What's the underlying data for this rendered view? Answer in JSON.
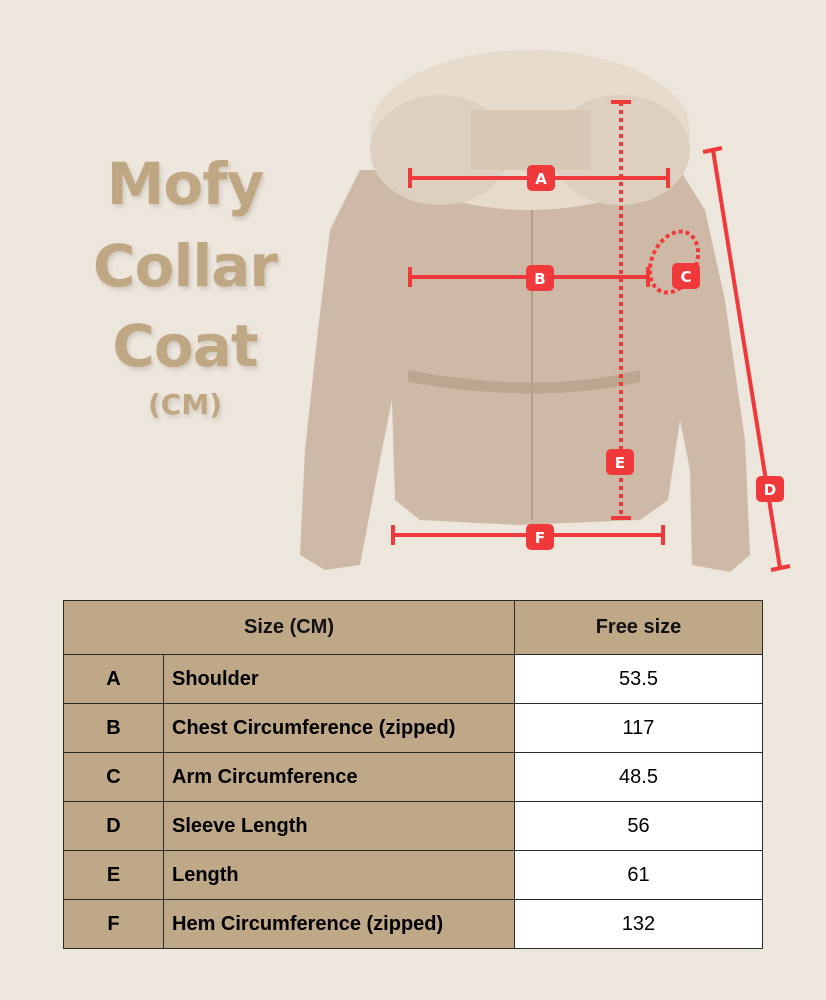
{
  "title": {
    "line1": "Mofy",
    "line2": "Collar",
    "line3": "Coat",
    "unit": "(CM)"
  },
  "colors": {
    "background": "#ede6dc",
    "accent": "#c0a784",
    "table_header": "#bfa888",
    "measure_red": "#f0393b"
  },
  "labels": [
    "A",
    "B",
    "C",
    "D",
    "E",
    "F"
  ],
  "table": {
    "header": {
      "size": "Size (CM)",
      "value": "Free size"
    },
    "rows": [
      {
        "key": "A",
        "name": "Shoulder",
        "value": "53.5"
      },
      {
        "key": "B",
        "name": "Chest Circumference (zipped)",
        "value": "117"
      },
      {
        "key": "C",
        "name": "Arm Circumference",
        "value": "48.5"
      },
      {
        "key": "D",
        "name": "Sleeve Length",
        "value": "56"
      },
      {
        "key": "E",
        "name": "Length",
        "value": "61"
      },
      {
        "key": "F",
        "name": "Hem Circumference (zipped)",
        "value": "132"
      }
    ]
  }
}
